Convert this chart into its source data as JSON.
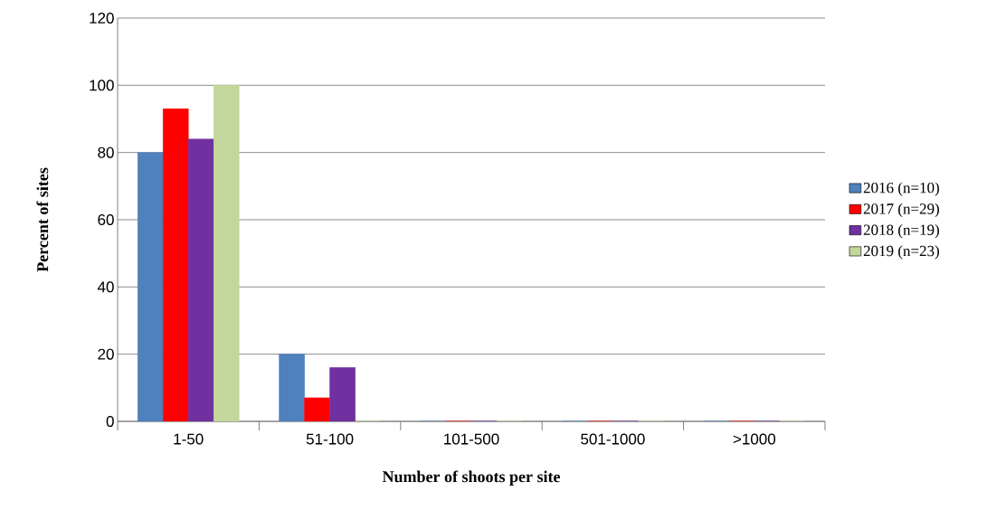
{
  "chart_data": {
    "type": "bar",
    "xlabel": "Number of shoots per site",
    "ylabel": "Percent of sites",
    "categories": [
      "1-50",
      "51-100",
      "101-500",
      "501-1000",
      ">1000"
    ],
    "series": [
      {
        "name": "2016 (n=10)",
        "color": "#4f81bd",
        "values": [
          80,
          20,
          0,
          0,
          0
        ]
      },
      {
        "name": "2017 (n=29)",
        "color": "#ff0000",
        "values": [
          93,
          7,
          0,
          0,
          0
        ]
      },
      {
        "name": "2018 (n=19)",
        "color": "#7030a0",
        "values": [
          84,
          16,
          0,
          0,
          0
        ]
      },
      {
        "name": "2019 (n=23)",
        "color": "#c3d69b",
        "values": [
          100,
          0,
          0,
          0,
          0
        ]
      }
    ],
    "ylim": [
      0,
      120
    ],
    "yticks": [
      0,
      20,
      40,
      60,
      80,
      100,
      120
    ],
    "grid": "y",
    "legend": "right"
  }
}
